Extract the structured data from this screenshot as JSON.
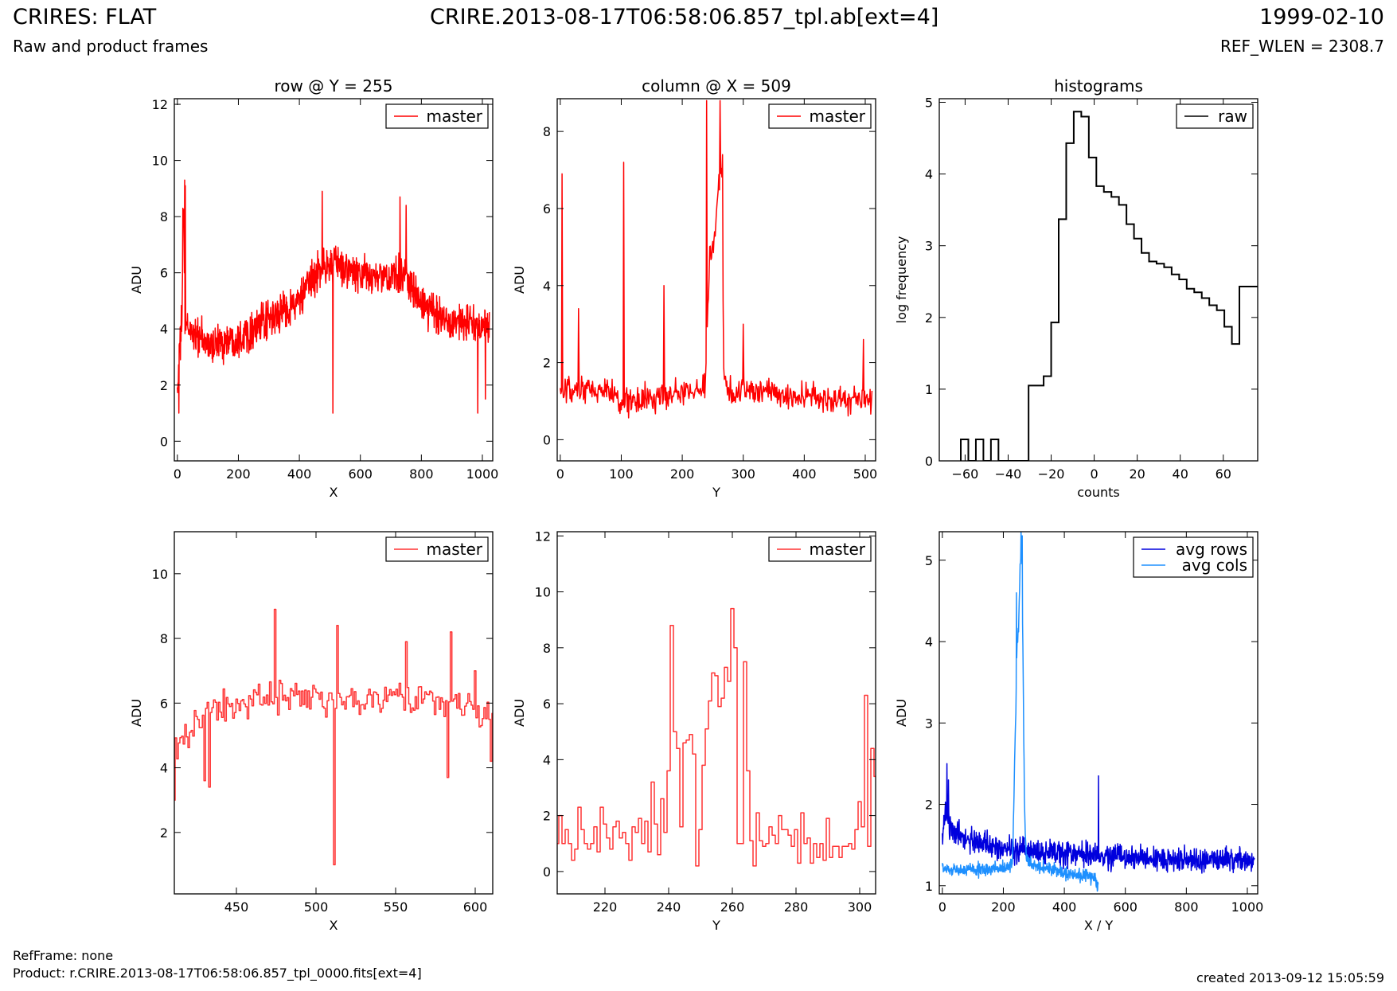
{
  "header": {
    "left_title": "CRIRES: FLAT",
    "left_subtitle": "Raw and product frames",
    "center_title": "CRIRE.2013-08-17T06:58:06.857_tpl.ab[ext=4]",
    "right_title": "1999-02-10",
    "right_subtitle": "REF_WLEN = 2308.7"
  },
  "footer": {
    "ref_frame": "RefFrame: none",
    "product": "Product: r.CRIRE.2013-08-17T06:58:06.857_tpl_0000.fits[ext=4]",
    "created": "created 2013-09-12 15:05:59"
  },
  "colors": {
    "master": "#ff0000",
    "master_zoom": "#ff3333",
    "raw": "#000000",
    "avg_rows": "#0000dd",
    "avg_cols": "#1e90ff"
  },
  "chart_data": [
    {
      "id": "row",
      "type": "line",
      "title": "row @ Y = 255",
      "xlabel": "X",
      "ylabel": "ADU",
      "xlim": [
        -10,
        1034
      ],
      "ylim": [
        -0.7,
        12.2
      ],
      "xticks": [
        0,
        200,
        400,
        600,
        800,
        1000
      ],
      "yticks": [
        0,
        2,
        4,
        6,
        8,
        10,
        12
      ],
      "legend": "top-right",
      "series": [
        {
          "name": "master",
          "color": "#ff0000",
          "style": "noise",
          "x": [
            0,
            15,
            20,
            25,
            40,
            100,
            200,
            300,
            400,
            470,
            512,
            600,
            700,
            750,
            800,
            900,
            1000,
            1023
          ],
          "y": [
            1.8,
            4.5,
            8.5,
            4.0,
            4.0,
            3.4,
            3.7,
            4.3,
            5.0,
            6.2,
            6.3,
            5.9,
            5.8,
            6.0,
            4.8,
            4.3,
            4.1,
            4.0
          ],
          "noise": 1.0,
          "count": 1024,
          "spikes": [
            [
              5,
              1.0
            ],
            [
              10,
              2.9
            ],
            [
              18,
              8.3
            ],
            [
              24,
              9.3
            ],
            [
              26,
              9.1
            ],
            [
              475,
              8.9
            ],
            [
              510,
              1.0
            ],
            [
              730,
              8.7
            ],
            [
              750,
              8.4
            ],
            [
              985,
              1.0
            ],
            [
              1010,
              1.5
            ]
          ]
        }
      ]
    },
    {
      "id": "column",
      "type": "line",
      "title": "column @ X = 509",
      "xlabel": "Y",
      "ylabel": "ADU",
      "xlim": [
        -5,
        517
      ],
      "ylim": [
        -0.55,
        8.85
      ],
      "xticks": [
        0,
        100,
        200,
        300,
        400,
        500
      ],
      "yticks": [
        0,
        2,
        4,
        6,
        8
      ],
      "legend": "top-right",
      "series": [
        {
          "name": "master",
          "color": "#ff0000",
          "style": "noise",
          "x": [
            0,
            80,
            90,
            130,
            200,
            238,
            245,
            250,
            255,
            260,
            265,
            268,
            275,
            300,
            400,
            511
          ],
          "y": [
            1.2,
            1.3,
            1.0,
            1.0,
            1.2,
            1.4,
            4.8,
            5.0,
            5.5,
            7.0,
            6.8,
            1.8,
            1.2,
            1.3,
            1.1,
            1.0
          ],
          "noise": 0.55,
          "count": 512,
          "spikes": [
            [
              3,
              6.9
            ],
            [
              30,
              3.4
            ],
            [
              104,
              7.2
            ],
            [
              170,
              4.0
            ],
            [
              240,
              8.8
            ],
            [
              262,
              8.8
            ],
            [
              266,
              7.4
            ],
            [
              300,
              3.0
            ],
            [
              497,
              2.6
            ]
          ]
        }
      ]
    },
    {
      "id": "histograms",
      "type": "step",
      "title": "histograms",
      "xlabel": "counts",
      "ylabel": "log frequency",
      "xlim": [
        -72,
        76
      ],
      "ylim": [
        0,
        5.05
      ],
      "xticks": [
        -60,
        -40,
        -20,
        0,
        20,
        40,
        60
      ],
      "yticks": [
        0,
        1,
        2,
        3,
        4,
        5
      ],
      "legend": "top-right",
      "series": [
        {
          "name": "raw",
          "color": "#000000",
          "edges": [
            -62,
            -58.5,
            -55,
            -51.5,
            -48,
            -44.5,
            -41,
            -37.5,
            -34,
            -30.5,
            -27,
            -23.5,
            -20,
            -16.5,
            -13,
            -9.5,
            -6,
            -2.5,
            1,
            4.5,
            8,
            11.5,
            15,
            18.5,
            22,
            25.5,
            29,
            32.5,
            36,
            39.5,
            43,
            46.5,
            50,
            53.5,
            57,
            60.5,
            64,
            67.5,
            71,
            74.5,
            76
          ],
          "counts": [
            0.3,
            0,
            0.3,
            0,
            0.3,
            0,
            0,
            0,
            0,
            1.05,
            1.05,
            1.18,
            1.93,
            3.37,
            4.43,
            4.87,
            4.8,
            4.23,
            3.83,
            3.75,
            3.68,
            3.57,
            3.3,
            3.1,
            2.9,
            2.78,
            2.75,
            2.7,
            2.6,
            2.53,
            2.4,
            2.35,
            2.27,
            2.17,
            2.1,
            1.87,
            1.63,
            2.43,
            2.43,
            2.43
          ]
        }
      ]
    },
    {
      "id": "row-zoom",
      "type": "line",
      "title": "",
      "xlabel": "X",
      "ylabel": "ADU",
      "xlim": [
        411,
        611
      ],
      "ylim": [
        0.1,
        11.3
      ],
      "xticks": [
        450,
        500,
        550,
        600
      ],
      "yticks": [
        2,
        4,
        6,
        8,
        10
      ],
      "legend": "top-right",
      "series": [
        {
          "name": "master",
          "color": "#ff3333",
          "style": "step",
          "x": [
            411,
            430,
            450,
            470,
            490,
            510,
            530,
            550,
            570,
            590,
            611
          ],
          "y": [
            4.8,
            5.6,
            5.9,
            6.3,
            6.2,
            5.9,
            6.0,
            6.2,
            6.1,
            5.9,
            5.6
          ],
          "noise": 0.75,
          "count": 200,
          "spikes": [
            [
              411,
              3.0
            ],
            [
              430,
              3.6
            ],
            [
              433,
              3.4
            ],
            [
              474,
              8.9
            ],
            [
              512,
              1.0
            ],
            [
              514,
              8.4
            ],
            [
              557,
              7.9
            ],
            [
              583,
              3.7
            ],
            [
              585,
              8.2
            ],
            [
              600,
              7.0
            ],
            [
              610,
              4.2
            ]
          ]
        }
      ]
    },
    {
      "id": "column-zoom",
      "type": "line",
      "title": "",
      "xlabel": "Y",
      "ylabel": "ADU",
      "xlim": [
        205,
        305
      ],
      "ylim": [
        -0.8,
        12.15
      ],
      "xticks": [
        220,
        240,
        260,
        280,
        300
      ],
      "yticks": [
        0,
        2,
        4,
        6,
        8,
        10,
        12
      ],
      "legend": "top-right",
      "series": [
        {
          "name": "master",
          "color": "#ff3333",
          "style": "step",
          "x": [
            205,
            206,
            207,
            208,
            209,
            210,
            211,
            212,
            213,
            214,
            215,
            216,
            217,
            218,
            219,
            220,
            221,
            222,
            223,
            224,
            225,
            226,
            227,
            228,
            229,
            230,
            231,
            232,
            233,
            234,
            235,
            236,
            237,
            238,
            239,
            240,
            241,
            242,
            243,
            244,
            245,
            246,
            247,
            248,
            249,
            250,
            251,
            252,
            253,
            254,
            255,
            256,
            257,
            258,
            259,
            260,
            261,
            262,
            263,
            264,
            265,
            266,
            267,
            268,
            269,
            270,
            271,
            272,
            273,
            274,
            275,
            276,
            277,
            278,
            279,
            280,
            281,
            282,
            283,
            284,
            285,
            286,
            287,
            288,
            289,
            290,
            291,
            292,
            293,
            294,
            295,
            296,
            297,
            298,
            299,
            300,
            301,
            302,
            303,
            304,
            305
          ],
          "y": [
            1.0,
            2.0,
            1.0,
            1.5,
            1.0,
            0.4,
            0.8,
            2.3,
            1.5,
            1.0,
            0.8,
            1.0,
            1.6,
            0.7,
            2.3,
            1.7,
            1.2,
            0.8,
            1.6,
            1.8,
            1.2,
            1.4,
            1.0,
            0.4,
            1.6,
            1.4,
            1.9,
            1.0,
            1.8,
            0.7,
            3.2,
            1.7,
            0.6,
            2.6,
            1.4,
            3.6,
            8.8,
            5.0,
            4.4,
            1.6,
            4.6,
            4.7,
            4.9,
            4.2,
            0.2,
            1.5,
            3.8,
            5.1,
            6.1,
            7.1,
            7.0,
            5.9,
            6.2,
            7.3,
            6.8,
            9.4,
            8.0,
            1.0,
            1.0,
            7.5,
            3.6,
            1.1,
            0.2,
            2.1,
            1.1,
            0.9,
            1.0,
            1.6,
            1.3,
            1.0,
            2.0,
            1.5,
            1.5,
            1.3,
            0.9,
            1.5,
            0.3,
            2.1,
            1.0,
            1.2,
            0.3,
            1.0,
            0.5,
            1.0,
            0.4,
            1.9,
            0.5,
            0.9,
            0.9,
            0.5,
            0.9,
            0.9,
            1.0,
            0.8,
            1.5,
            2.5,
            1.6,
            6.3,
            0.9,
            4.4,
            3.4
          ],
          "noise": 0,
          "count": 101,
          "spikes": []
        }
      ]
    },
    {
      "id": "averages",
      "type": "line",
      "title": "",
      "xlabel": "X / Y",
      "ylabel": "ADU",
      "xlim": [
        -10,
        1034
      ],
      "ylim": [
        0.9,
        5.35
      ],
      "xticks": [
        0,
        200,
        400,
        600,
        800,
        1000
      ],
      "yticks": [
        1,
        2,
        3,
        4,
        5
      ],
      "legend": "top-right",
      "series": [
        {
          "name": "avg rows",
          "color": "#0000dd",
          "style": "noise",
          "x": [
            0,
            10,
            20,
            40,
            100,
            200,
            300,
            400,
            500,
            600,
            700,
            800,
            900,
            1023
          ],
          "y": [
            1.6,
            1.9,
            1.75,
            1.65,
            1.55,
            1.45,
            1.42,
            1.4,
            1.38,
            1.35,
            1.33,
            1.32,
            1.32,
            1.3
          ],
          "noise": 0.22,
          "count": 1024,
          "spikes": [
            [
              15,
              2.5
            ],
            [
              20,
              2.3
            ],
            [
              512,
              2.35
            ]
          ]
        },
        {
          "name": "avg cols",
          "color": "#1e90ff",
          "style": "noise",
          "x": [
            0,
            100,
            220,
            230,
            240,
            245,
            250,
            255,
            260,
            265,
            270,
            275,
            280,
            300,
            400,
            500,
            511
          ],
          "y": [
            1.2,
            1.2,
            1.22,
            1.3,
            3.0,
            4.0,
            4.2,
            4.9,
            5.2,
            3.6,
            1.8,
            1.35,
            1.3,
            1.25,
            1.15,
            1.1,
            0.95
          ],
          "noise": 0.12,
          "count": 512,
          "spikes": [
            [
              243,
              4.6
            ],
            [
              258,
              5.35
            ],
            [
              262,
              5.3
            ]
          ]
        }
      ]
    }
  ]
}
